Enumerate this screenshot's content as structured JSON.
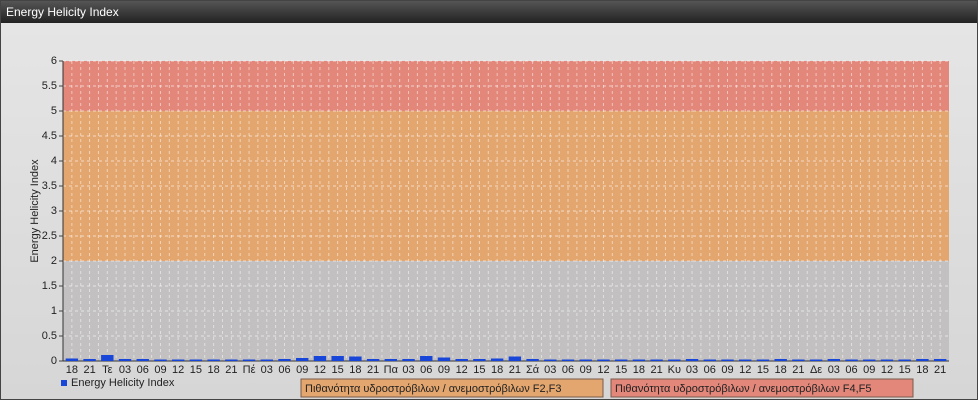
{
  "chart_data": {
    "type": "bar",
    "title": "Energy Helicity Index",
    "y_label": "Energy Helicity Index",
    "categories": [
      "18",
      "21",
      "Τε",
      "03",
      "06",
      "09",
      "12",
      "15",
      "18",
      "21",
      "Πέ",
      "03",
      "06",
      "09",
      "12",
      "15",
      "18",
      "21",
      "Πα",
      "03",
      "06",
      "09",
      "12",
      "15",
      "18",
      "21",
      "Σά",
      "03",
      "06",
      "09",
      "12",
      "15",
      "18",
      "21",
      "Κυ",
      "03",
      "06",
      "09",
      "12",
      "15",
      "18",
      "21",
      "Δε",
      "03",
      "06",
      "09",
      "12",
      "15",
      "18",
      "21"
    ],
    "series": [
      {
        "name": "Energy Helicity Index",
        "color": "#1846d8",
        "values": [
          0.03,
          0.02,
          0.1,
          0.02,
          0.02,
          0.01,
          0.01,
          0.01,
          0.01,
          0.01,
          0.01,
          0.01,
          0.02,
          0.04,
          0.08,
          0.08,
          0.07,
          0.02,
          0.02,
          0.02,
          0.08,
          0.05,
          0.02,
          0.02,
          0.03,
          0.07,
          0.02,
          0.01,
          0.01,
          0.01,
          0.01,
          0.01,
          0.01,
          0.01,
          0.01,
          0.02,
          0.01,
          0.01,
          0.01,
          0.01,
          0.02,
          0.01,
          0.01,
          0.02,
          0.01,
          0.01,
          0.01,
          0.01,
          0.02,
          0.02
        ]
      }
    ],
    "bands": [
      {
        "name": "Πιθανότητα υδροστρόβιλων / ανεμοστρόβιλων F2,F3",
        "from": 2,
        "to": 5,
        "color": "#e3a66e"
      },
      {
        "name": "Πιθανότητα υδροστρόβιλων / ανεμοστρόβιλων F4,F5",
        "from": 5,
        "to": 6,
        "color": "#e2877a"
      }
    ],
    "ylim": [
      0,
      6
    ],
    "yticks": [
      0,
      0.5,
      1,
      1.5,
      2,
      2.5,
      3,
      3.5,
      4,
      4.5,
      5,
      5.5,
      6
    ],
    "grid": true
  }
}
